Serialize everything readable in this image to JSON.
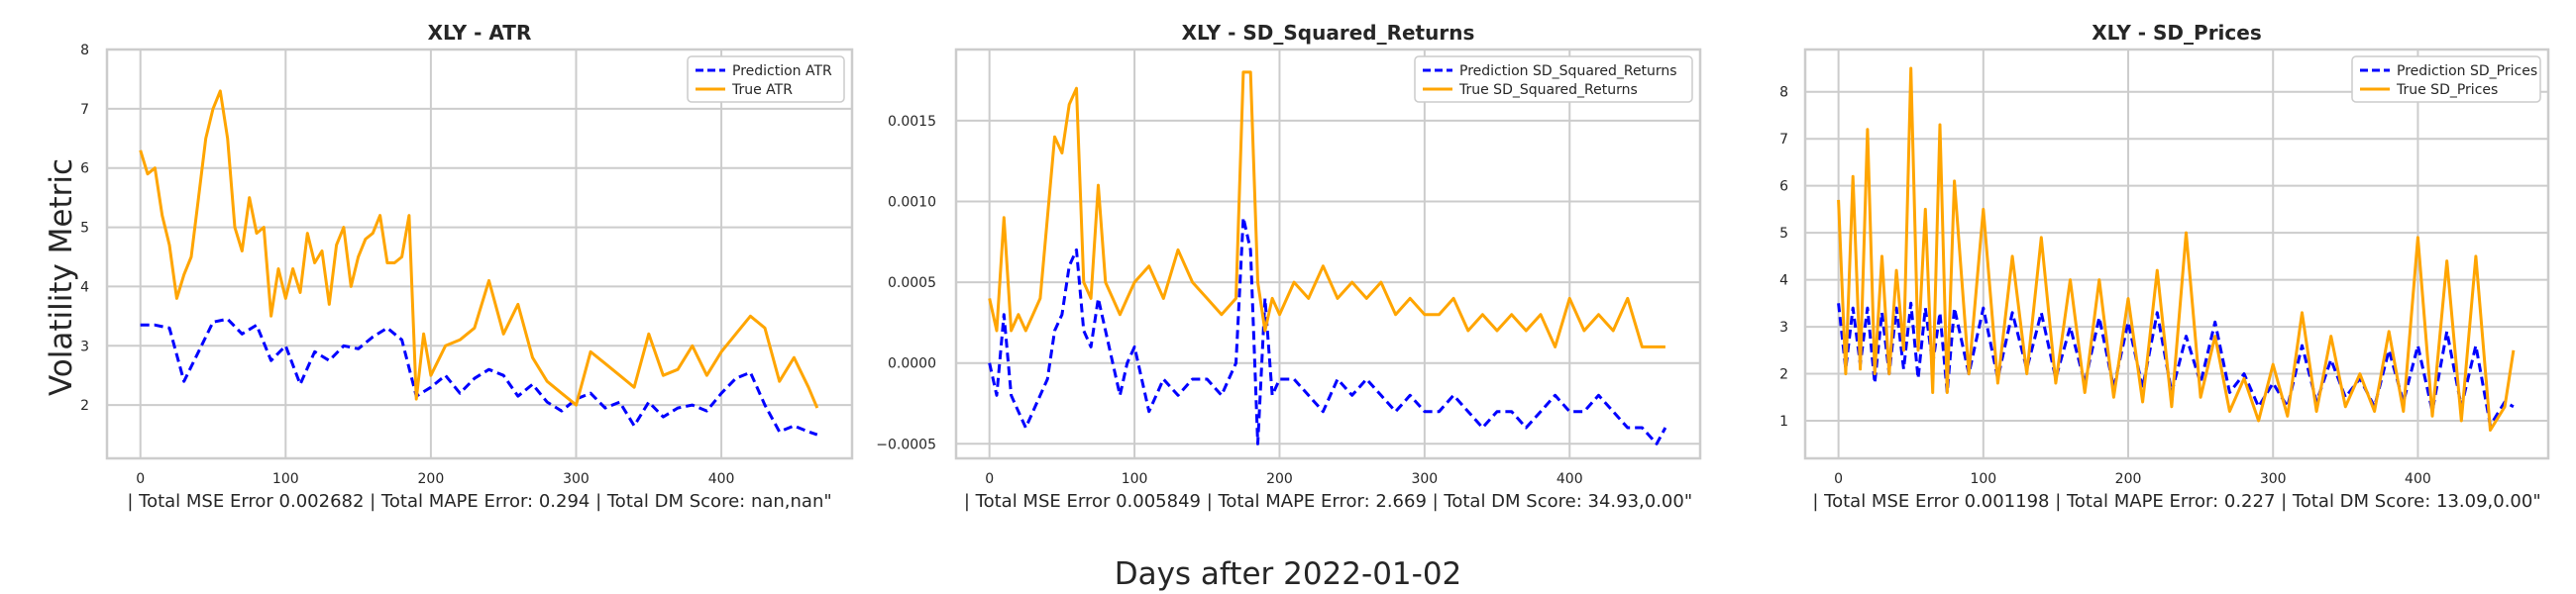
{
  "figure": {
    "ylabel": "Volatility Metric",
    "xlabel": "Days after 2022-01-02"
  },
  "colors": {
    "prediction": "#0000ff",
    "true": "#ffa500",
    "grid": "#cccccc",
    "frame": "#cccccc"
  },
  "chart_data": [
    {
      "type": "line",
      "title": "XLY - ATR",
      "xlabel": "| Total MSE Error 0.002682 | Total MAPE Error: 0.294 | Total DM Score: nan,nan\"",
      "ylabel": "Volatility Metric",
      "xlim": [
        -23,
        490
      ],
      "ylim": [
        1.1,
        8.0
      ],
      "xticks": [
        0,
        100,
        200,
        300,
        400
      ],
      "yticks": [
        2,
        3,
        4,
        5,
        6,
        7,
        8
      ],
      "grid": true,
      "legend": "top-right",
      "series": [
        {
          "name": "Prediction ATR",
          "style": "dashed",
          "color": "#0000ff",
          "x": [
            0,
            10,
            20,
            30,
            40,
            50,
            60,
            70,
            80,
            90,
            100,
            110,
            120,
            130,
            140,
            150,
            160,
            170,
            180,
            190,
            200,
            210,
            220,
            230,
            240,
            250,
            260,
            270,
            280,
            290,
            300,
            310,
            320,
            330,
            340,
            350,
            360,
            370,
            380,
            390,
            400,
            410,
            420,
            430,
            440,
            450,
            460,
            466
          ],
          "y": [
            3.35,
            3.35,
            3.3,
            2.4,
            2.9,
            3.4,
            3.45,
            3.2,
            3.35,
            2.75,
            3.0,
            2.35,
            2.9,
            2.75,
            3.0,
            2.95,
            3.15,
            3.3,
            3.1,
            2.15,
            2.3,
            2.5,
            2.2,
            2.45,
            2.6,
            2.5,
            2.15,
            2.35,
            2.05,
            1.9,
            2.1,
            2.2,
            1.95,
            2.05,
            1.65,
            2.05,
            1.8,
            1.95,
            2.0,
            1.9,
            2.2,
            2.45,
            2.55,
            2.0,
            1.55,
            1.65,
            1.55,
            1.5
          ]
        },
        {
          "name": "True ATR",
          "style": "solid",
          "color": "#ffa500",
          "x": [
            0,
            5,
            10,
            15,
            20,
            25,
            30,
            35,
            40,
            45,
            50,
            55,
            60,
            65,
            70,
            75,
            80,
            85,
            90,
            95,
            100,
            105,
            110,
            115,
            120,
            125,
            130,
            135,
            140,
            145,
            150,
            155,
            160,
            165,
            170,
            175,
            180,
            185,
            190,
            195,
            200,
            210,
            220,
            230,
            240,
            250,
            260,
            270,
            280,
            290,
            300,
            310,
            320,
            330,
            340,
            350,
            360,
            370,
            380,
            390,
            400,
            410,
            420,
            430,
            440,
            450,
            460,
            466
          ],
          "y": [
            6.3,
            5.9,
            6.0,
            5.2,
            4.7,
            3.8,
            4.2,
            4.5,
            5.5,
            6.5,
            7.0,
            7.3,
            6.5,
            5.0,
            4.6,
            5.5,
            4.9,
            5.0,
            3.5,
            4.3,
            3.8,
            4.3,
            3.9,
            4.9,
            4.4,
            4.6,
            3.7,
            4.7,
            5.0,
            4.0,
            4.5,
            4.8,
            4.9,
            5.2,
            4.4,
            4.4,
            4.5,
            5.2,
            2.1,
            3.2,
            2.5,
            3.0,
            3.1,
            3.3,
            4.1,
            3.2,
            3.7,
            2.8,
            2.4,
            2.2,
            2.0,
            2.9,
            2.7,
            2.5,
            2.3,
            3.2,
            2.5,
            2.6,
            3.0,
            2.5,
            2.9,
            3.2,
            3.5,
            3.3,
            2.4,
            2.8,
            2.3,
            1.95
          ]
        }
      ]
    },
    {
      "type": "line",
      "title": "XLY - SD_Squared_Returns",
      "xlabel": "| Total MSE Error 0.005849 | Total MAPE Error: 2.669 | Total DM Score: 34.93,0.00\"",
      "xlim": [
        -23,
        490
      ],
      "ylim": [
        -0.00059,
        0.00194
      ],
      "xticks": [
        0,
        100,
        200,
        300,
        400
      ],
      "yticks": [
        -0.0005,
        0.0,
        0.0005,
        0.001,
        0.0015
      ],
      "ytick_labels": [
        "−0.0005",
        "0.0000",
        "0.0005",
        "0.0010",
        "0.0015"
      ],
      "grid": true,
      "legend": "top-right",
      "series": [
        {
          "name": "Prediction SD_Squared_Returns",
          "style": "dashed",
          "color": "#0000ff",
          "x": [
            0,
            5,
            10,
            15,
            20,
            25,
            30,
            35,
            40,
            45,
            50,
            55,
            60,
            65,
            70,
            75,
            80,
            85,
            90,
            95,
            100,
            110,
            120,
            130,
            140,
            150,
            160,
            170,
            175,
            180,
            185,
            190,
            195,
            200,
            210,
            220,
            230,
            240,
            250,
            260,
            270,
            280,
            290,
            300,
            310,
            320,
            330,
            340,
            350,
            360,
            370,
            380,
            390,
            400,
            410,
            420,
            430,
            440,
            450,
            460,
            466
          ],
          "y": [
            0.0,
            -0.0002,
            0.0003,
            -0.0002,
            -0.0003,
            -0.0004,
            -0.0003,
            -0.0002,
            -0.0001,
            0.0002,
            0.0003,
            0.0006,
            0.0007,
            0.0002,
            0.0001,
            0.0004,
            0.0002,
            0.0,
            -0.0002,
            0.0,
            0.0001,
            -0.0003,
            -0.0001,
            -0.0002,
            -0.0001,
            -0.0001,
            -0.0002,
            0.0,
            0.0009,
            0.0007,
            -0.0005,
            0.0004,
            -0.0002,
            -0.0001,
            -0.0001,
            -0.0002,
            -0.0003,
            -0.0001,
            -0.0002,
            -0.0001,
            -0.0002,
            -0.0003,
            -0.0002,
            -0.0003,
            -0.0003,
            -0.0002,
            -0.0003,
            -0.0004,
            -0.0003,
            -0.0003,
            -0.0004,
            -0.0003,
            -0.0002,
            -0.0003,
            -0.0003,
            -0.0002,
            -0.0003,
            -0.0004,
            -0.0004,
            -0.0005,
            -0.0004
          ]
        },
        {
          "name": "True SD_Squared_Returns",
          "style": "solid",
          "color": "#ffa500",
          "x": [
            0,
            5,
            10,
            15,
            20,
            25,
            30,
            35,
            40,
            45,
            50,
            55,
            60,
            65,
            70,
            75,
            80,
            85,
            90,
            95,
            100,
            110,
            120,
            130,
            140,
            150,
            160,
            170,
            175,
            180,
            185,
            190,
            195,
            200,
            210,
            220,
            230,
            240,
            250,
            260,
            270,
            280,
            290,
            300,
            310,
            320,
            330,
            340,
            350,
            360,
            370,
            380,
            390,
            400,
            410,
            420,
            430,
            440,
            450,
            460,
            466
          ],
          "y": [
            0.0004,
            0.0002,
            0.0009,
            0.0002,
            0.0003,
            0.0002,
            0.0003,
            0.0004,
            0.0009,
            0.0014,
            0.0013,
            0.0016,
            0.0017,
            0.0005,
            0.0004,
            0.0011,
            0.0005,
            0.0004,
            0.0003,
            0.0004,
            0.0005,
            0.0006,
            0.0004,
            0.0007,
            0.0005,
            0.0004,
            0.0003,
            0.0004,
            0.0018,
            0.0018,
            0.0005,
            0.0002,
            0.0004,
            0.0003,
            0.0005,
            0.0004,
            0.0006,
            0.0004,
            0.0005,
            0.0004,
            0.0005,
            0.0003,
            0.0004,
            0.0003,
            0.0003,
            0.0004,
            0.0002,
            0.0003,
            0.0002,
            0.0003,
            0.0002,
            0.0003,
            0.0001,
            0.0004,
            0.0002,
            0.0003,
            0.0002,
            0.0004,
            0.0001,
            0.0001,
            0.0001
          ]
        }
      ]
    },
    {
      "type": "line",
      "title": "XLY - SD_Prices",
      "xlabel": "| Total MSE Error 0.001198 | Total MAPE Error: 0.227 | Total DM Score: 13.09,0.00\"",
      "xlim": [
        -23,
        490
      ],
      "ylim": [
        0.2,
        8.9
      ],
      "xticks": [
        0,
        100,
        200,
        300,
        400
      ],
      "yticks": [
        1,
        2,
        3,
        4,
        5,
        6,
        7,
        8
      ],
      "grid": true,
      "legend": "top-right",
      "series": [
        {
          "name": "Prediction SD_Prices",
          "style": "dashed",
          "color": "#0000ff",
          "x": [
            0,
            5,
            10,
            15,
            20,
            25,
            30,
            35,
            40,
            45,
            50,
            55,
            60,
            65,
            70,
            75,
            80,
            90,
            100,
            110,
            120,
            130,
            140,
            150,
            160,
            170,
            180,
            190,
            200,
            210,
            220,
            230,
            240,
            250,
            260,
            270,
            280,
            290,
            300,
            310,
            320,
            330,
            340,
            350,
            360,
            370,
            380,
            390,
            400,
            410,
            420,
            430,
            440,
            450,
            460,
            466
          ],
          "y": [
            3.5,
            2.1,
            3.4,
            2.2,
            3.4,
            1.8,
            3.3,
            2.0,
            3.4,
            2.1,
            3.5,
            1.9,
            3.4,
            2.2,
            3.3,
            1.6,
            3.4,
            2.0,
            3.4,
            1.9,
            3.3,
            2.1,
            3.3,
            1.9,
            3.0,
            1.8,
            3.2,
            1.7,
            3.1,
            1.7,
            3.3,
            1.6,
            2.8,
            1.8,
            3.1,
            1.6,
            2.0,
            1.3,
            1.8,
            1.3,
            2.6,
            1.4,
            2.3,
            1.5,
            1.9,
            1.3,
            2.5,
            1.4,
            2.6,
            1.2,
            2.9,
            1.3,
            2.6,
            0.9,
            1.4,
            1.3
          ]
        },
        {
          "name": "True SD_Prices",
          "style": "solid",
          "color": "#ffa500",
          "x": [
            0,
            5,
            10,
            15,
            20,
            25,
            30,
            35,
            40,
            45,
            50,
            55,
            60,
            65,
            70,
            75,
            80,
            90,
            100,
            110,
            120,
            130,
            140,
            150,
            160,
            170,
            180,
            190,
            200,
            210,
            220,
            230,
            240,
            250,
            260,
            270,
            280,
            290,
            300,
            310,
            320,
            330,
            340,
            350,
            360,
            370,
            380,
            390,
            400,
            410,
            420,
            430,
            440,
            450,
            460,
            466
          ],
          "y": [
            5.7,
            2.0,
            6.2,
            2.1,
            7.2,
            2.0,
            4.5,
            2.0,
            4.2,
            2.5,
            8.5,
            2.5,
            5.5,
            1.6,
            7.3,
            1.6,
            6.1,
            2.0,
            5.5,
            1.8,
            4.5,
            2.0,
            4.9,
            1.8,
            4.0,
            1.6,
            4.0,
            1.5,
            3.6,
            1.4,
            4.2,
            1.3,
            5.0,
            1.5,
            2.8,
            1.2,
            1.9,
            1.0,
            2.2,
            1.1,
            3.3,
            1.2,
            2.8,
            1.3,
            2.0,
            1.2,
            2.9,
            1.2,
            4.9,
            1.1,
            4.4,
            1.0,
            4.5,
            0.8,
            1.3,
            2.5
          ]
        }
      ]
    }
  ]
}
